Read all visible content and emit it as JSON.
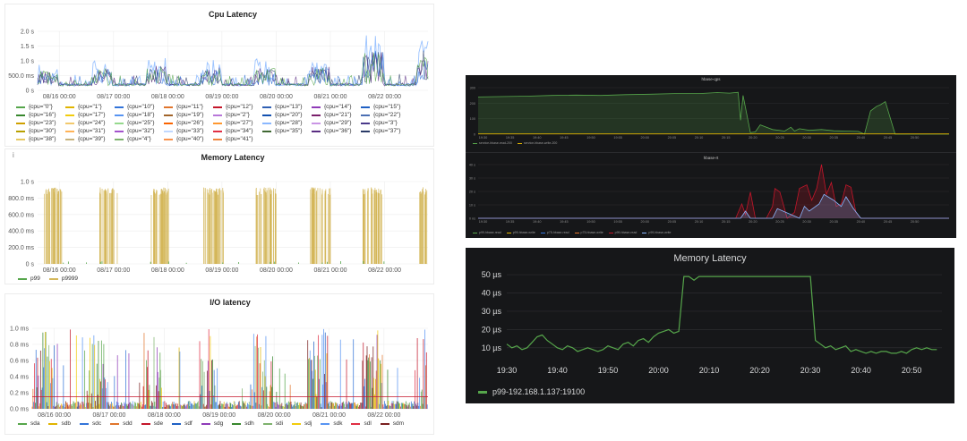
{
  "chart_data": [
    {
      "id": "cpu",
      "type": "line",
      "title": "Cpu Latency",
      "y_ticks": [
        "2.0 s",
        "1.5 s",
        "1.0 s",
        "500.0 ms",
        "0 s"
      ],
      "x_ticks": [
        "08/16 00:00",
        "08/17 00:00",
        "08/18 00:00",
        "08/19 00:00",
        "08/20 00:00",
        "08/21 00:00",
        "08/22 00:00"
      ],
      "ylim": [
        0,
        2.0
      ],
      "x_range_days": [
        15.6,
        22.8
      ],
      "legend": [
        "{cpu=\"0\"}",
        "{cpu=\"1\"}",
        "{cpu=\"10\"}",
        "{cpu=\"11\"}",
        "{cpu=\"12\"}",
        "{cpu=\"13\"}",
        "{cpu=\"14\"}",
        "{cpu=\"15\"}",
        "{cpu=\"16\"}",
        "{cpu=\"17\"}",
        "{cpu=\"18\"}",
        "{cpu=\"19\"}",
        "{cpu=\"2\"}",
        "{cpu=\"20\"}",
        "{cpu=\"21\"}",
        "{cpu=\"22\"}",
        "{cpu=\"23\"}",
        "{cpu=\"24\"}",
        "{cpu=\"25\"}",
        "{cpu=\"26\"}",
        "{cpu=\"27\"}",
        "{cpu=\"28\"}",
        "{cpu=\"29\"}",
        "{cpu=\"3\"}",
        "{cpu=\"30\"}",
        "{cpu=\"31\"}",
        "{cpu=\"32\"}",
        "{cpu=\"33\"}",
        "{cpu=\"34\"}",
        "{cpu=\"35\"}",
        "{cpu=\"36\"}",
        "{cpu=\"37\"}",
        "{cpu=\"38\"}",
        "{cpu=\"39\"}",
        "{cpu=\"4\"}",
        "{cpu=\"40\"}",
        "{cpu=\"41\"}"
      ],
      "legend_colors": [
        "#56a64b",
        "#e0b400",
        "#3274d9",
        "#e0752d",
        "#c4162a",
        "#2f5fb3",
        "#8f3bb8",
        "#1f60c4",
        "#37872d",
        "#f2cc0c",
        "#5794f2",
        "#a16429",
        "#b877d9",
        "#1250b0",
        "#7a1f6b",
        "#4b6fb3",
        "#cfa000",
        "#f2c96d",
        "#96d98d",
        "#fa6400",
        "#ff9830",
        "#8ab8ff",
        "#ca95e5",
        "#4a3a8a",
        "#b8a000",
        "#ffb357",
        "#a352cc",
        "#c0d8ff",
        "#e02f44",
        "#3f6833",
        "#5a2d82",
        "#2a3b67",
        "#e6c862",
        "#c7b27c",
        "#7eb26d",
        "#f9934e",
        "#ef843c"
      ],
      "series_summary": {
        "baseline_s": 0.15,
        "daily_peaks_s": [
          0.75,
          0.85,
          0.95,
          0.9,
          0.9,
          0.95,
          1.8
        ]
      }
    },
    {
      "id": "mem",
      "type": "line",
      "title": "Memory Latency",
      "y_ticks": [
        "1.0 s",
        "800.0 ms",
        "600.0 ms",
        "400.0 ms",
        "200.0 ms",
        "0 s"
      ],
      "x_ticks": [
        "08/16 00:00",
        "08/17 00:00",
        "08/18 00:00",
        "08/19 00:00",
        "08/20 00:00",
        "08/21 00:00",
        "08/22 00:00"
      ],
      "ylim": [
        0,
        1000
      ],
      "x_range_days": [
        15.6,
        22.8
      ],
      "series": [
        {
          "name": "p99",
          "color": "#56a64b"
        },
        {
          "name": "p9999",
          "color": "#d4b75a"
        }
      ],
      "bursts_days": [
        [
          15.72,
          16.05
        ],
        [
          16.72,
          17.08
        ],
        [
          17.68,
          18.02
        ],
        [
          18.65,
          19.03
        ],
        [
          19.62,
          20.0
        ],
        [
          20.62,
          21.0
        ],
        [
          21.6,
          21.98
        ],
        [
          22.62,
          22.8
        ]
      ],
      "burst_value_ms": 950
    },
    {
      "id": "io",
      "type": "line",
      "title": "I/O latency",
      "y_ticks": [
        "1.0 ms",
        "0.8 ms",
        "0.6 ms",
        "0.4 ms",
        "0.2 ms",
        "0.0 ms"
      ],
      "x_ticks": [
        "08/16 00:00",
        "08/17 00:00",
        "08/18 00:00",
        "08/19 00:00",
        "08/20 00:00",
        "08/21 00:00",
        "08/22 00:00"
      ],
      "ylim": [
        0,
        1.0
      ],
      "x_range_days": [
        15.6,
        22.8
      ],
      "series": [
        {
          "name": "sda",
          "color": "#56a64b"
        },
        {
          "name": "sdb",
          "color": "#e0b400"
        },
        {
          "name": "sdc",
          "color": "#3274d9"
        },
        {
          "name": "sdd",
          "color": "#e0752d"
        },
        {
          "name": "sde",
          "color": "#c4162a"
        },
        {
          "name": "sdf",
          "color": "#1f60c4"
        },
        {
          "name": "sdg",
          "color": "#8f3bb8"
        },
        {
          "name": "sdh",
          "color": "#37872d"
        },
        {
          "name": "sdi",
          "color": "#7eb26d"
        },
        {
          "name": "sdj",
          "color": "#f2cc0c"
        },
        {
          "name": "sdk",
          "color": "#5794f2"
        },
        {
          "name": "sdl",
          "color": "#e02f44"
        },
        {
          "name": "sdm",
          "color": "#7a1f1f"
        }
      ],
      "baseline_ms": 0.15
    },
    {
      "id": "hbase-qps",
      "type": "area",
      "title": "hbase-qps",
      "y_ticks": [
        "300",
        "200",
        "100",
        "0"
      ],
      "x_ticks": [
        "19:30",
        "19:35",
        "19:40",
        "19:45",
        "19:50",
        "19:55",
        "20:00",
        "20:05",
        "20:10",
        "20:15",
        "20:20",
        "20:25",
        "20:30",
        "20:35",
        "20:40",
        "20:45",
        "20:50"
      ],
      "ylim": [
        0,
        300
      ],
      "series": [
        {
          "name": "service-hbase-read-200",
          "color": "#56a64b",
          "x_min": [
            0,
            40,
            60,
            80,
            100,
            120,
            140,
            160,
            180,
            195,
            205,
            212,
            214,
            216,
            222,
            226,
            230,
            240,
            250,
            255,
            258,
            262,
            270,
            280,
            290,
            300,
            310,
            315,
            320,
            325,
            328,
            332,
            340,
            360,
            384
          ],
          "values": [
            240,
            245,
            250,
            252,
            250,
            255,
            258,
            262,
            262,
            268,
            265,
            270,
            90,
            250,
            10,
            15,
            60,
            30,
            20,
            45,
            20,
            35,
            25,
            30,
            22,
            20,
            18,
            0,
            150,
            180,
            190,
            210,
            0,
            0,
            0
          ]
        },
        {
          "name": "service-hbase-write-200",
          "color": "#e0b400",
          "x_min": [
            0,
            384
          ],
          "values": [
            2,
            2
          ]
        }
      ]
    },
    {
      "id": "hbase-rt",
      "type": "area",
      "title": "hbase-rt",
      "y_ticks": [
        "40 s",
        "30 s",
        "20 s",
        "10 s",
        "0 ns"
      ],
      "x_ticks": [
        "19:30",
        "19:35",
        "19:40",
        "19:45",
        "19:50",
        "19:55",
        "20:00",
        "20:05",
        "20:10",
        "20:15",
        "20:20",
        "20:25",
        "20:30",
        "20:35",
        "20:40",
        "20:45",
        "20:50"
      ],
      "ylim": [
        0,
        45
      ],
      "series": [
        {
          "name": "p99-hbase-read",
          "color": "#56a64b"
        },
        {
          "name": "p99-hbase-write",
          "color": "#e0b400"
        },
        {
          "name": "p75-hbase-read",
          "color": "#3274d9"
        },
        {
          "name": "p75-hbase-write",
          "color": "#e0752d"
        },
        {
          "name": "p99-hbase-read",
          "color": "#c4162a",
          "x_min": [
            0,
            210,
            215,
            218,
            222,
            226,
            235,
            240,
            242,
            246,
            252,
            258,
            262,
            268,
            272,
            276,
            280,
            284,
            288,
            292,
            296,
            300,
            304,
            308,
            312,
            384
          ],
          "values": [
            0,
            0,
            12,
            3,
            22,
            0,
            0,
            10,
            25,
            22,
            0,
            5,
            25,
            28,
            15,
            25,
            45,
            20,
            30,
            10,
            12,
            28,
            26,
            5,
            0,
            0
          ]
        },
        {
          "name": "p99-hbase-write",
          "color": "#8ab8ff",
          "x_min": [
            0,
            214,
            218,
            222,
            240,
            244,
            262,
            266,
            270,
            278,
            282,
            290,
            296,
            300,
            306,
            312,
            384
          ],
          "values": [
            0,
            0,
            6,
            0,
            0,
            8,
            0,
            10,
            6,
            12,
            20,
            15,
            10,
            18,
            8,
            0,
            0
          ]
        }
      ]
    },
    {
      "id": "memory-latency-dark",
      "type": "line",
      "title": "Memory Latency",
      "y_ticks": [
        "50 µs",
        "40 µs",
        "30 µs",
        "20 µs",
        "10 µs"
      ],
      "x_ticks": [
        "19:30",
        "19:40",
        "19:50",
        "20:00",
        "20:10",
        "20:20",
        "20:30",
        "20:40",
        "20:50"
      ],
      "ylim": [
        5,
        52
      ],
      "x_range_min": [
        0,
        86
      ],
      "series": [
        {
          "name": "p99-192.168.1.137:19100",
          "color": "#56a64b",
          "x_min": [
            0,
            1,
            2,
            3,
            4,
            5,
            6,
            7,
            8,
            9,
            10,
            11,
            12,
            13,
            14,
            15,
            16,
            17,
            18,
            19,
            20,
            21,
            22,
            23,
            24,
            25,
            26,
            27,
            28,
            29,
            30,
            31,
            32,
            33,
            34,
            35,
            36,
            37,
            38,
            39,
            40,
            41,
            42,
            43,
            44,
            45,
            46,
            47,
            48,
            49,
            50,
            51,
            52,
            53,
            54,
            55,
            56,
            57,
            58,
            59,
            60,
            61,
            62,
            63,
            64,
            65,
            66,
            67,
            68,
            69,
            70,
            71,
            72,
            73,
            74,
            75,
            76,
            77,
            78,
            79,
            80,
            81,
            82,
            83,
            84,
            85
          ],
          "values": [
            12,
            10,
            11,
            9,
            10,
            13,
            16,
            17,
            14,
            12,
            10,
            9,
            11,
            10,
            8,
            9,
            10,
            9,
            8,
            9,
            11,
            10,
            9,
            12,
            13,
            11,
            14,
            15,
            13,
            16,
            18,
            19,
            20,
            18,
            19,
            49,
            49,
            47,
            49,
            49,
            49,
            49,
            49,
            49,
            49,
            49,
            49,
            49,
            49,
            49,
            49,
            49,
            49,
            49,
            49,
            49,
            49,
            49,
            49,
            49,
            49,
            14,
            12,
            10,
            11,
            9,
            10,
            11,
            8,
            9,
            8,
            7,
            8,
            7,
            8,
            8,
            7,
            7,
            8,
            7,
            9,
            10,
            9,
            10,
            9,
            9
          ]
        }
      ]
    }
  ]
}
